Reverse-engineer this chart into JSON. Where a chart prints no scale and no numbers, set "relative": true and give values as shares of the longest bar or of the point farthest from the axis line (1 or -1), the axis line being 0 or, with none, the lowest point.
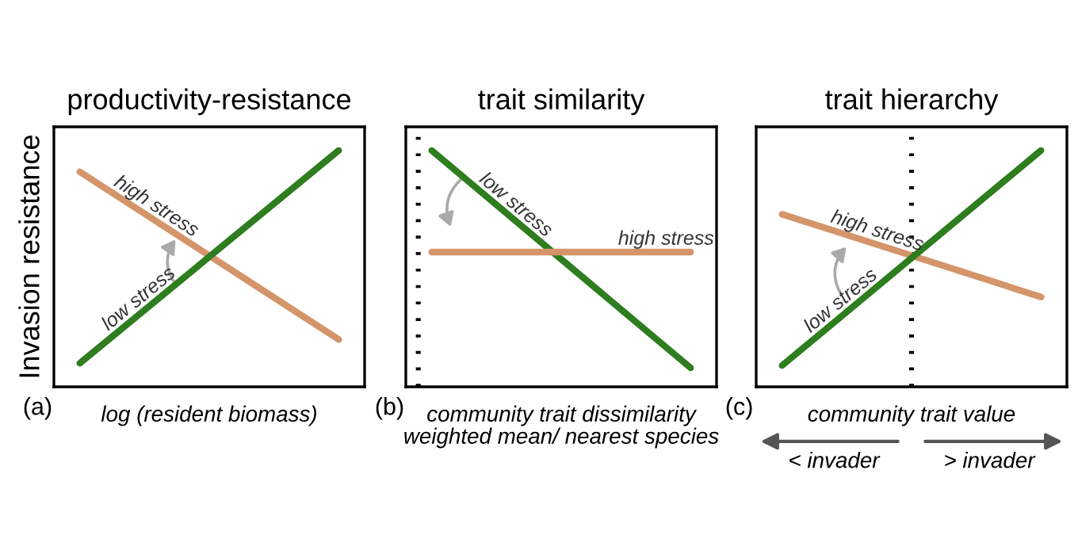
{
  "chart_data": [
    {
      "type": "line",
      "title": "productivity-resistance",
      "ylabel": "Invasion resistance",
      "xlabel": "log (resident biomass)",
      "relative": true,
      "categories": [
        null,
        null
      ],
      "annotations": [
        "(a)"
      ],
      "series": [
        {
          "name": "high stress",
          "color": "#d4956a",
          "values": [
            0.91,
            0.2
          ]
        },
        {
          "name": "low stress",
          "color": "#2e7d1f",
          "values": [
            0.1,
            1
          ]
        }
      ]
    },
    {
      "type": "line",
      "title": "trait similarity",
      "xlabel": "community trait dissimilarity\nweighted mean/ nearest species",
      "relative": true,
      "categories": [
        null,
        null
      ],
      "annotations": [
        "(b)"
      ],
      "series": [
        {
          "name": "low stress",
          "color": "#2e7d1f",
          "values": [
            1,
            0.08
          ]
        },
        {
          "name": "high stress",
          "color": "#d4956a",
          "values": [
            0.57,
            0.57
          ]
        }
      ]
    },
    {
      "type": "line",
      "title": "trait hierarchy",
      "xlabel": "community trait value",
      "relative": true,
      "categories": [
        null,
        null
      ],
      "annotations": [
        "(c)",
        "< invader",
        "> invader"
      ],
      "series": [
        {
          "name": "high stress",
          "color": "#d4956a",
          "values": [
            0.73,
            0.38
          ]
        },
        {
          "name": "low stress",
          "color": "#2e7d1f",
          "values": [
            0.09,
            1
          ]
        }
      ]
    }
  ]
}
